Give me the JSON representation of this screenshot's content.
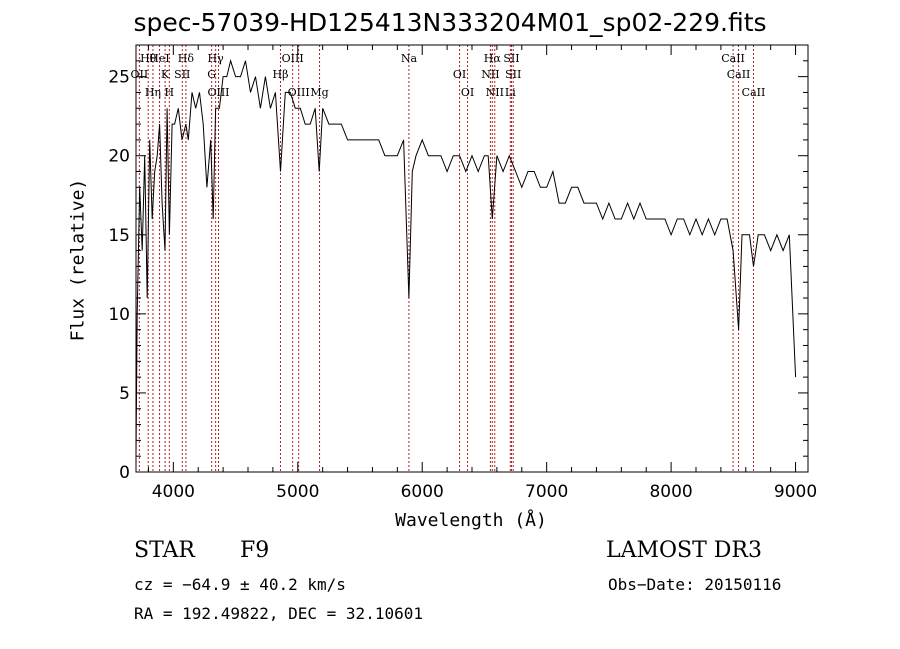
{
  "chart_data": {
    "type": "line",
    "title": "spec-57039-HD125413N333204M01_sp02-229.fits",
    "xlabel": "Wavelength (Å)",
    "ylabel": "Flux (relative)",
    "xlim": [
      3700,
      9100
    ],
    "ylim": [
      0,
      27
    ],
    "xticks": [
      4000,
      5000,
      6000,
      7000,
      8000,
      9000
    ],
    "yticks": [
      0,
      5,
      10,
      15,
      20,
      25
    ],
    "series": [
      {
        "name": "flux",
        "x": [
          3700,
          3710,
          3730,
          3750,
          3770,
          3790,
          3810,
          3830,
          3850,
          3870,
          3890,
          3910,
          3933,
          3950,
          3968,
          3990,
          4010,
          4040,
          4070,
          4101,
          4120,
          4150,
          4180,
          4210,
          4240,
          4270,
          4300,
          4320,
          4340,
          4370,
          4400,
          4430,
          4460,
          4500,
          4540,
          4580,
          4620,
          4660,
          4700,
          4740,
          4780,
          4820,
          4861,
          4900,
          4940,
          4980,
          5020,
          5060,
          5100,
          5140,
          5172,
          5200,
          5250,
          5300,
          5350,
          5400,
          5450,
          5500,
          5550,
          5600,
          5650,
          5700,
          5750,
          5800,
          5850,
          5893,
          5920,
          5950,
          6000,
          6050,
          6100,
          6150,
          6200,
          6250,
          6300,
          6350,
          6400,
          6450,
          6500,
          6530,
          6563,
          6600,
          6650,
          6700,
          6750,
          6800,
          6850,
          6900,
          6950,
          7000,
          7050,
          7100,
          7150,
          7200,
          7250,
          7300,
          7350,
          7400,
          7450,
          7500,
          7550,
          7600,
          7650,
          7700,
          7750,
          7800,
          7850,
          7900,
          7950,
          8000,
          8050,
          8100,
          8150,
          8200,
          8250,
          8300,
          8350,
          8400,
          8450,
          8498,
          8542,
          8570,
          8600,
          8630,
          8662,
          8700,
          8750,
          8800,
          8850,
          8900,
          8950,
          9000
        ],
        "y": [
          1,
          10,
          18,
          14,
          20,
          11,
          21,
          16,
          19,
          20,
          22,
          17,
          14,
          23,
          15,
          22,
          22,
          23,
          21,
          22,
          21,
          24,
          23,
          24,
          22,
          18,
          21,
          16,
          23,
          23,
          25,
          25,
          26,
          25,
          25,
          26,
          24,
          25,
          23,
          25,
          23,
          24,
          19,
          24,
          24,
          23,
          23,
          22,
          22,
          23,
          19,
          23,
          22,
          22,
          22,
          21,
          21,
          21,
          21,
          21,
          21,
          20,
          20,
          20,
          21,
          11,
          19,
          20,
          21,
          20,
          20,
          20,
          19,
          20,
          20,
          19,
          20,
          19,
          20,
          20,
          16,
          20,
          19,
          20,
          19,
          18,
          19,
          19,
          18,
          18,
          19,
          17,
          17,
          18,
          18,
          17,
          17,
          17,
          16,
          17,
          16,
          16,
          17,
          16,
          17,
          16,
          16,
          16,
          16,
          15,
          16,
          16,
          15,
          16,
          15,
          16,
          15,
          16,
          16,
          14,
          9,
          15,
          15,
          15,
          13,
          15,
          15,
          14,
          15,
          14,
          15,
          6
        ]
      }
    ],
    "lines": [
      {
        "label": "Hθ",
        "wave": 3798
      },
      {
        "label": "OII",
        "wave": 3727
      },
      {
        "label": "Hη",
        "wave": 3836
      },
      {
        "label": "HeI",
        "wave": 3889
      },
      {
        "label": "K",
        "wave": 3934
      },
      {
        "label": "H",
        "wave": 3968
      },
      {
        "label": "Hδ",
        "wave": 4101
      },
      {
        "label": "SII",
        "wave": 4072
      },
      {
        "label": "OIII",
        "wave": 4363
      },
      {
        "label": "Hγ",
        "wave": 4340
      },
      {
        "label": "G",
        "wave": 4308
      },
      {
        "label": "OIII",
        "wave": 5007
      },
      {
        "label": "OIII",
        "wave": 4959
      },
      {
        "label": "Hβ",
        "wave": 4861
      },
      {
        "label": "Mg",
        "wave": 5175
      },
      {
        "label": "Na",
        "wave": 5893
      },
      {
        "label": "OI",
        "wave": 6300
      },
      {
        "label": "OI",
        "wave": 6364
      },
      {
        "label": "Hα",
        "wave": 6563
      },
      {
        "label": "NII",
        "wave": 6548
      },
      {
        "label": "NII",
        "wave": 6583
      },
      {
        "label": "SII",
        "wave": 6717
      },
      {
        "label": "SII",
        "wave": 6731
      },
      {
        "label": "Li",
        "wave": 6708
      },
      {
        "label": "CaII",
        "wave": 8498
      },
      {
        "label": "CaII",
        "wave": 8542
      },
      {
        "label": "CaII",
        "wave": 8662
      }
    ]
  },
  "info": {
    "class_label": "STAR",
    "subclass": "F9",
    "survey": "LAMOST DR3",
    "redshift": "cz = −64.9 ± 40.2 km/s",
    "obs_date": "Obs−Date: 20150116",
    "coords": "RA = 192.49822, DEC =  32.10601"
  },
  "colors": {
    "line_markers": "#b22222",
    "spectrum": "#000000"
  }
}
